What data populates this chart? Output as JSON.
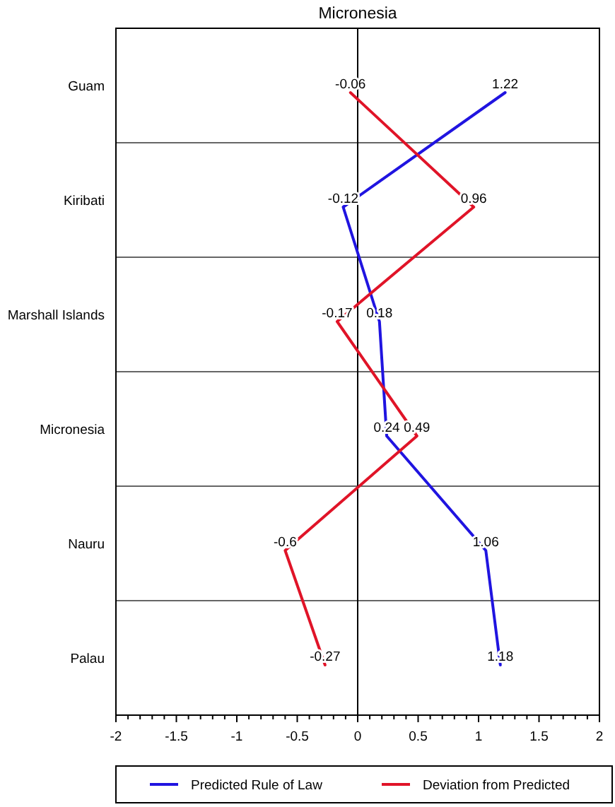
{
  "chart_data": {
    "type": "line",
    "title": "Micronesia",
    "orientation": "horizontal",
    "categories": [
      "Guam",
      "Kiribati",
      "Marshall Islands",
      "Micronesia",
      "Nauru",
      "Palau"
    ],
    "series": [
      {
        "name": "Predicted Rule of Law",
        "color": "#2014e0",
        "values": [
          1.22,
          -0.12,
          0.18,
          0.24,
          1.06,
          1.18
        ]
      },
      {
        "name": "Deviation from Predicted",
        "color": "#e01428",
        "values": [
          -0.06,
          0.96,
          -0.17,
          0.49,
          -0.6,
          -0.27
        ]
      }
    ],
    "xlim": [
      -2,
      2
    ],
    "xticks": [
      -2,
      {
        "value": -1.9,
        "label": null
      },
      {
        "value": -1.8,
        "label": null
      },
      {
        "value": -1.7,
        "label": null
      },
      {
        "value": -1.6,
        "label": null
      },
      -1.5,
      {
        "value": -1.4,
        "label": null
      },
      {
        "value": -1.3,
        "label": null
      },
      {
        "value": -1.2,
        "label": null
      },
      {
        "value": -1.1,
        "label": null
      },
      -1,
      {
        "value": -0.9,
        "label": null
      },
      {
        "value": -0.8,
        "label": null
      },
      {
        "value": -0.7,
        "label": null
      },
      {
        "value": -0.6,
        "label": null
      },
      -0.5,
      {
        "value": -0.4,
        "label": null
      },
      {
        "value": -0.3,
        "label": null
      },
      {
        "value": -0.2,
        "label": null
      },
      {
        "value": -0.1,
        "label": null
      },
      0,
      {
        "value": 0.1,
        "label": null
      },
      {
        "value": 0.2,
        "label": null
      },
      {
        "value": 0.3,
        "label": null
      },
      {
        "value": 0.4,
        "label": null
      },
      0.5,
      {
        "value": 0.6,
        "label": null
      },
      {
        "value": 0.7,
        "label": null
      },
      {
        "value": 0.8,
        "label": null
      },
      {
        "value": 0.9,
        "label": null
      },
      1,
      {
        "value": 1.1,
        "label": null
      },
      {
        "value": 1.2,
        "label": null
      },
      {
        "value": 1.3,
        "label": null
      },
      {
        "value": 1.4,
        "label": null
      },
      1.5,
      {
        "value": 1.6,
        "label": null
      },
      {
        "value": 1.7,
        "label": null
      },
      {
        "value": 1.8,
        "label": null
      },
      {
        "value": 1.9,
        "label": null
      },
      2
    ],
    "ref_lines": [
      {
        "axis": "x",
        "value": 0
      }
    ],
    "grid": "y",
    "data_labels": true,
    "legend": "bottom",
    "marker": "none",
    "line_style": "solid"
  }
}
